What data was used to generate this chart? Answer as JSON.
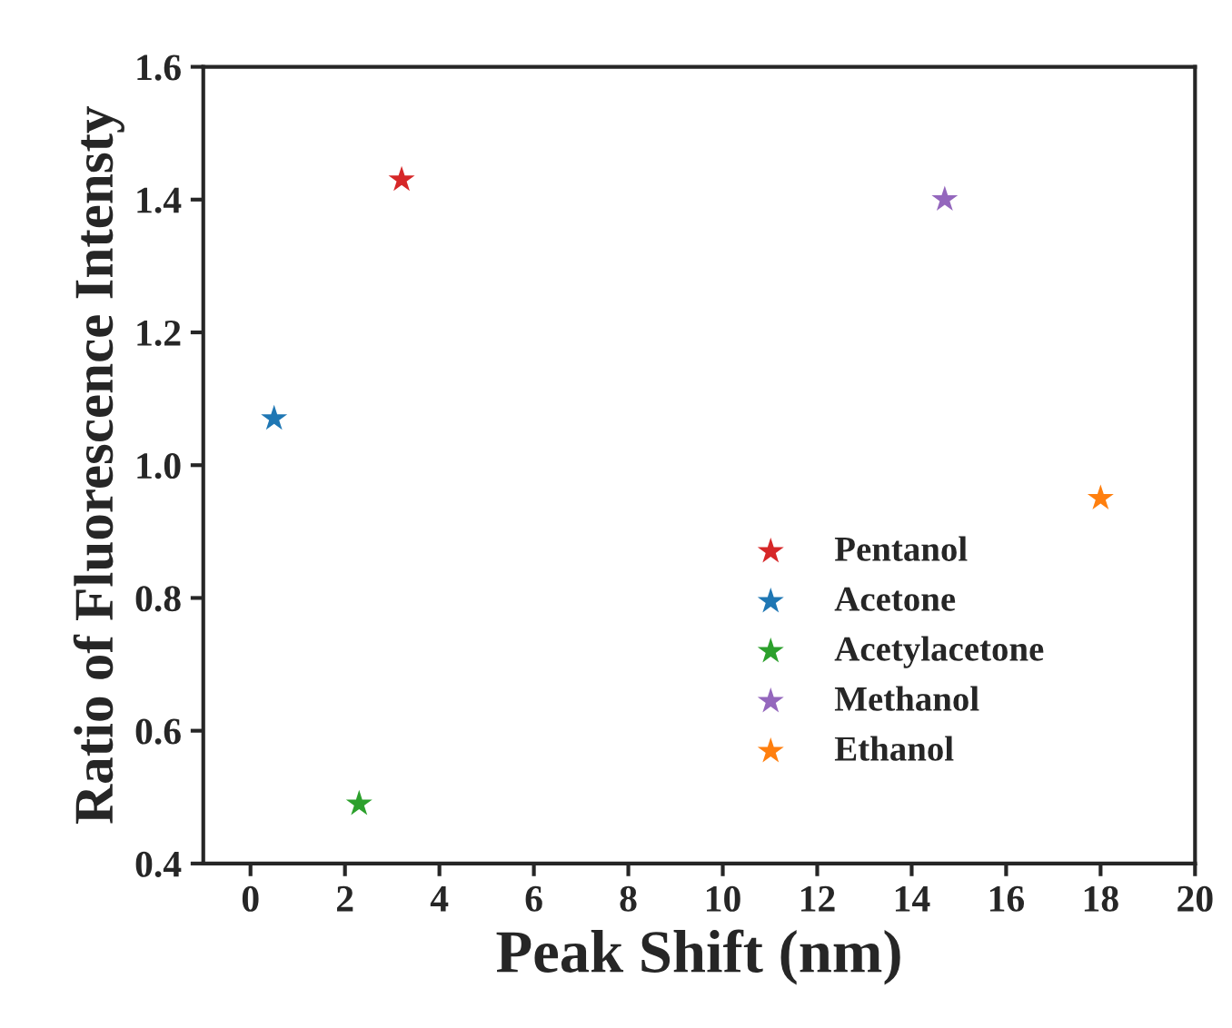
{
  "chart_data": {
    "type": "scatter",
    "xlabel": "Peak Shift (nm)",
    "ylabel": "Ratio of Fluorescence Intensty",
    "xlim": [
      -1,
      20
    ],
    "xticks": [
      0,
      2,
      4,
      6,
      8,
      10,
      12,
      14,
      16,
      18,
      20
    ],
    "ylim": [
      0.4,
      1.6
    ],
    "yticks": [
      0.4,
      0.6,
      0.8,
      {
        "value": 1,
        "label": "1.0"
      },
      1.2,
      1.4,
      1.6
    ],
    "marker": "star",
    "grid": false,
    "legend": "bottom right",
    "series": [
      {
        "name": "Pentanol",
        "color": "#d62728",
        "x": [
          3.2
        ],
        "values": [
          1.43
        ]
      },
      {
        "name": "Acetone",
        "color": "#1f77b4",
        "x": [
          0.5
        ],
        "values": [
          1.07
        ]
      },
      {
        "name": "Acetylacetone",
        "color": "#2ca02c",
        "x": [
          2.3
        ],
        "values": [
          0.49
        ]
      },
      {
        "name": "Methanol",
        "color": "#9467bd",
        "x": [
          14.7
        ],
        "values": [
          1.4
        ]
      },
      {
        "name": "Ethanol",
        "color": "#ff7f0e",
        "x": [
          18.0
        ],
        "values": [
          0.95
        ]
      }
    ]
  }
}
